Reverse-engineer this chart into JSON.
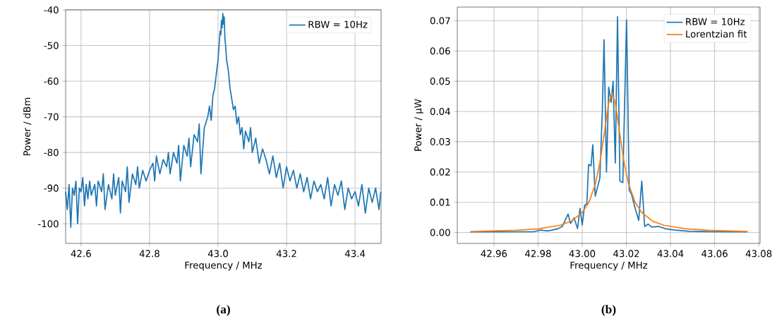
{
  "chart_data": [
    {
      "type": "line",
      "xlabel": "Frequency / MHz",
      "ylabel": "Power / dBm",
      "annotations": [
        "(a)"
      ],
      "xlim": [
        42.555,
        43.476
      ],
      "ylim": [
        -105.5,
        -40
      ],
      "xticks": [
        42.6,
        42.8,
        {
          "value": 43,
          "label": "43.0"
        },
        43.2,
        43.4
      ],
      "yticks": [
        -100,
        -90,
        -80,
        -70,
        -60,
        -50,
        -40
      ],
      "grid": true,
      "legend": "top right",
      "marker": "none",
      "line_style": "solid",
      "series": [
        {
          "name": "RBW = 10Hz",
          "color": "#1f77b4",
          "x": [
            42.555,
            42.56,
            42.565,
            42.57,
            42.575,
            42.58,
            42.585,
            42.59,
            42.595,
            42.6,
            42.605,
            42.61,
            42.615,
            42.62,
            42.625,
            42.63,
            42.64,
            42.645,
            42.65,
            42.66,
            42.665,
            42.67,
            42.68,
            42.69,
            42.695,
            42.7,
            42.71,
            42.715,
            42.72,
            42.73,
            42.735,
            42.74,
            42.75,
            42.76,
            42.765,
            42.77,
            42.78,
            42.79,
            42.8,
            42.81,
            42.815,
            42.82,
            42.83,
            42.84,
            42.85,
            42.855,
            42.86,
            42.87,
            42.88,
            42.885,
            42.89,
            42.9,
            42.91,
            42.915,
            42.92,
            42.93,
            42.94,
            42.945,
            42.95,
            42.96,
            42.97,
            42.975,
            42.98,
            42.985,
            42.99,
            42.995,
            43.0,
            43.003,
            43.006,
            43.008,
            43.01,
            43.012,
            43.014,
            43.016,
            43.018,
            43.02,
            43.022,
            43.025,
            43.03,
            43.035,
            43.04,
            43.045,
            43.05,
            43.055,
            43.06,
            43.065,
            43.07,
            43.075,
            43.08,
            43.09,
            43.095,
            43.1,
            43.11,
            43.12,
            43.13,
            43.14,
            43.15,
            43.16,
            43.17,
            43.18,
            43.19,
            43.2,
            43.21,
            43.22,
            43.23,
            43.24,
            43.25,
            43.26,
            43.27,
            43.28,
            43.29,
            43.3,
            43.31,
            43.32,
            43.33,
            43.34,
            43.35,
            43.36,
            43.37,
            43.38,
            43.39,
            43.4,
            43.41,
            43.42,
            43.43,
            43.44,
            43.45,
            43.46,
            43.47,
            43.475
          ],
          "values": [
            -91,
            -96,
            -89,
            -101,
            -90,
            -92,
            -88,
            -100,
            -90,
            -91,
            -87,
            -95,
            -89,
            -93,
            -88,
            -92,
            -89,
            -95,
            -88,
            -91,
            -86,
            -96,
            -89,
            -93,
            -86,
            -92,
            -87,
            -97,
            -88,
            -91,
            -84,
            -94,
            -86,
            -89,
            -84,
            -90,
            -85,
            -88,
            -85,
            -83,
            -88,
            -81,
            -86,
            -82,
            -84,
            -80,
            -86,
            -80,
            -83,
            -78,
            -88,
            -78,
            -81,
            -76,
            -84,
            -75,
            -77,
            -72,
            -86,
            -73,
            -70,
            -67,
            -71,
            -64,
            -62,
            -58,
            -54,
            -50,
            -46,
            -47,
            -43,
            -45,
            -41,
            -44,
            -42,
            -48,
            -50,
            -54,
            -57,
            -62,
            -65,
            -68,
            -67,
            -72,
            -70,
            -75,
            -73,
            -79,
            -74,
            -77,
            -73,
            -80,
            -76,
            -83,
            -79,
            -82,
            -86,
            -81,
            -87,
            -83,
            -90,
            -84,
            -88,
            -85,
            -90,
            -86,
            -91,
            -87,
            -93,
            -88,
            -91,
            -89,
            -93,
            -87,
            -95,
            -89,
            -92,
            -88,
            -96,
            -90,
            -93,
            -91,
            -95,
            -89,
            -97,
            -90,
            -94,
            -90,
            -96,
            -91
          ]
        }
      ]
    },
    {
      "type": "line",
      "xlabel": "Frequency / MHz",
      "ylabel": "Power / µW",
      "annotations": [
        "(b)"
      ],
      "xlim": [
        42.9434,
        43.0806
      ],
      "ylim": [
        -0.0036,
        0.0745
      ],
      "xticks": [
        42.96,
        42.98,
        {
          "value": 43,
          "label": "43.00"
        },
        43.02,
        43.04,
        43.06,
        43.08
      ],
      "yticks": [
        {
          "value": 0,
          "label": "0.00"
        },
        0.01,
        0.02,
        0.03,
        0.04,
        0.05,
        0.06,
        0.07
      ],
      "grid": true,
      "legend": "top right",
      "marker": "none",
      "line_style": "solid",
      "series": [
        {
          "name": "RBW = 10Hz",
          "color": "#1f77b4",
          "x": [
            42.9493,
            42.978,
            42.9813,
            42.9845,
            42.9888,
            42.991,
            42.9936,
            42.9947,
            42.9963,
            42.9979,
            42.999,
            43.0,
            43.0011,
            43.0021,
            43.0029,
            43.004,
            43.0048,
            43.0059,
            43.008,
            43.0091,
            43.0099,
            43.011,
            43.012,
            43.0131,
            43.014,
            43.015,
            43.016,
            43.0171,
            43.0184,
            43.0201,
            43.0213,
            43.0224,
            43.024,
            43.0256,
            43.027,
            43.0283,
            43.0299,
            43.0315,
            43.0347,
            43.0379,
            43.0421,
            43.0485,
            43.0581,
            43.0747
          ],
          "values": [
            0.0002,
            0.0003,
            0.0008,
            0.0005,
            0.0012,
            0.002,
            0.0061,
            0.003,
            0.0048,
            0.0013,
            0.008,
            0.0025,
            0.009,
            0.0095,
            0.0225,
            0.022,
            0.029,
            0.012,
            0.018,
            0.04,
            0.0637,
            0.02,
            0.048,
            0.043,
            0.05,
            0.023,
            0.0713,
            0.017,
            0.0165,
            0.0703,
            0.014,
            0.0125,
            0.008,
            0.004,
            0.017,
            0.002,
            0.0028,
            0.0018,
            0.002,
            0.0012,
            0.0008,
            0.0004,
            0.0003,
            0.0002
          ]
        },
        {
          "name": "Lorentzian fit",
          "color": "#ff7f0e",
          "x": [
            42.95,
            42.97,
            42.98,
            42.99,
            42.995,
            43.0,
            43.003,
            43.006,
            43.008,
            43.01,
            43.012,
            43.0135,
            43.015,
            43.017,
            43.019,
            43.021,
            43.024,
            43.027,
            43.032,
            43.037,
            43.047,
            43.057,
            43.075
          ],
          "values": [
            0.00034,
            0.00072,
            0.0012,
            0.0024,
            0.0037,
            0.0066,
            0.0099,
            0.0161,
            0.023,
            0.0327,
            0.0428,
            0.046,
            0.0428,
            0.0327,
            0.023,
            0.0161,
            0.0099,
            0.0066,
            0.0037,
            0.0024,
            0.0012,
            0.00072,
            0.00036
          ]
        }
      ]
    }
  ]
}
